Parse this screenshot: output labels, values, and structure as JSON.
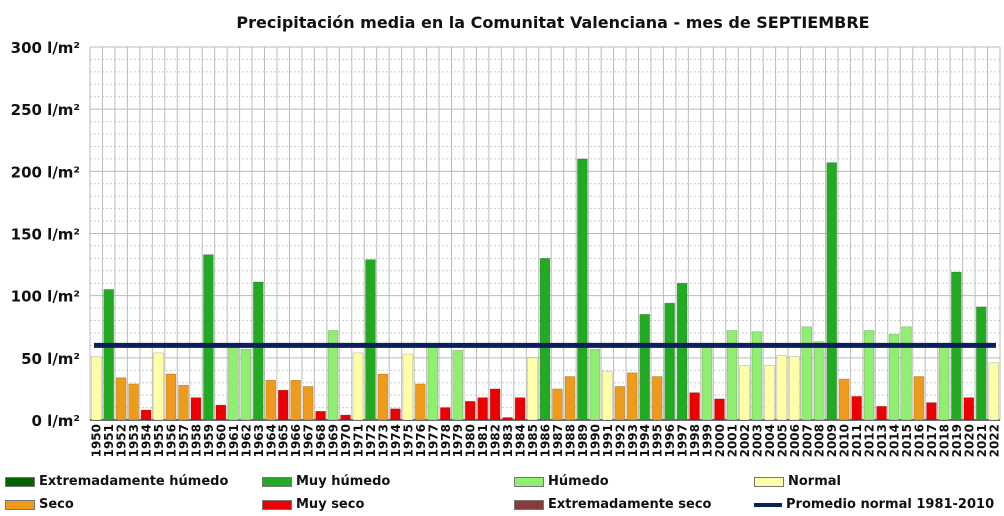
{
  "chart_data": {
    "type": "bar",
    "title": "Precipitación media en la Comunitat Valenciana - mes de SEPTIEMBRE",
    "xlabel": "",
    "ylabel": "",
    "ylim": [
      0,
      300
    ],
    "y_ticks": [
      0,
      50,
      100,
      150,
      200,
      250,
      300
    ],
    "y_tick_labels": [
      "0 l/m²",
      "50 l/m²",
      "100 l/m²",
      "150 l/m²",
      "200 l/m²",
      "250 l/m²",
      "300 l/m²"
    ],
    "grid": true,
    "categories": [
      "1950",
      "1951",
      "1952",
      "1953",
      "1954",
      "1955",
      "1956",
      "1957",
      "1958",
      "1959",
      "1960",
      "1961",
      "1962",
      "1963",
      "1964",
      "1965",
      "1966",
      "1967",
      "1968",
      "1969",
      "1970",
      "1971",
      "1972",
      "1973",
      "1974",
      "1975",
      "1976",
      "1977",
      "1978",
      "1979",
      "1980",
      "1981",
      "1982",
      "1983",
      "1984",
      "1985",
      "1986",
      "1987",
      "1988",
      "1989",
      "1990",
      "1991",
      "1992",
      "1993",
      "1994",
      "1995",
      "1996",
      "1997",
      "1998",
      "1999",
      "2000",
      "2001",
      "2002",
      "2003",
      "2004",
      "2005",
      "2006",
      "2007",
      "2008",
      "2009",
      "2010",
      "2011",
      "2012",
      "2013",
      "2014",
      "2015",
      "2016",
      "2017",
      "2018",
      "2019",
      "2020",
      "2021",
      "2022"
    ],
    "values": [
      51,
      105,
      34,
      29,
      8,
      54,
      37,
      28,
      18,
      133,
      12,
      59,
      57,
      111,
      32,
      24,
      32,
      27,
      7,
      72,
      4,
      54,
      129,
      37,
      9,
      53,
      29,
      61,
      10,
      56,
      15,
      18,
      25,
      2,
      18,
      50,
      130,
      25,
      35,
      210,
      57,
      39,
      27,
      38,
      85,
      35,
      94,
      110,
      22,
      60,
      17,
      72,
      44,
      71,
      44,
      52,
      51,
      75,
      63,
      207,
      33,
      19,
      72,
      11,
      69,
      75,
      35,
      14,
      60,
      119,
      18,
      91,
      46
    ],
    "classes": [
      "N",
      "MH",
      "S",
      "S",
      "MS",
      "N",
      "S",
      "S",
      "MS",
      "MH",
      "MS",
      "H",
      "H",
      "MH",
      "S",
      "MS",
      "S",
      "S",
      "MS",
      "H",
      "MS",
      "N",
      "MH",
      "S",
      "MS",
      "N",
      "S",
      "H",
      "MS",
      "H",
      "MS",
      "MS",
      "MS",
      "MS",
      "MS",
      "N",
      "MH",
      "S",
      "S",
      "MH",
      "H",
      "N",
      "S",
      "S",
      "MH",
      "S",
      "MH",
      "MH",
      "MS",
      "H",
      "MS",
      "H",
      "N",
      "H",
      "N",
      "N",
      "N",
      "H",
      "H",
      "MH",
      "S",
      "MS",
      "H",
      "MS",
      "H",
      "H",
      "S",
      "MS",
      "H",
      "MH",
      "MS",
      "MH",
      "N"
    ],
    "reference_line": {
      "label": "Promedio normal 1981-2010",
      "value": 60,
      "color": "#0a1f5c"
    },
    "legend": [
      {
        "key": "EH",
        "label": "Extremadamente húmedo",
        "color": "#006400"
      },
      {
        "key": "MH",
        "label": "Muy húmedo",
        "color": "#22aa22"
      },
      {
        "key": "H",
        "label": "Húmedo",
        "color": "#90ee70"
      },
      {
        "key": "N",
        "label": "Normal",
        "color": "#ffffa8"
      },
      {
        "key": "S",
        "label": "Seco",
        "color": "#ee9a1a"
      },
      {
        "key": "MS",
        "label": "Muy seco",
        "color": "#ee0000"
      },
      {
        "key": "ES",
        "label": "Extremadamente seco",
        "color": "#8b3a3a"
      }
    ],
    "legend_placement": "bottom"
  }
}
